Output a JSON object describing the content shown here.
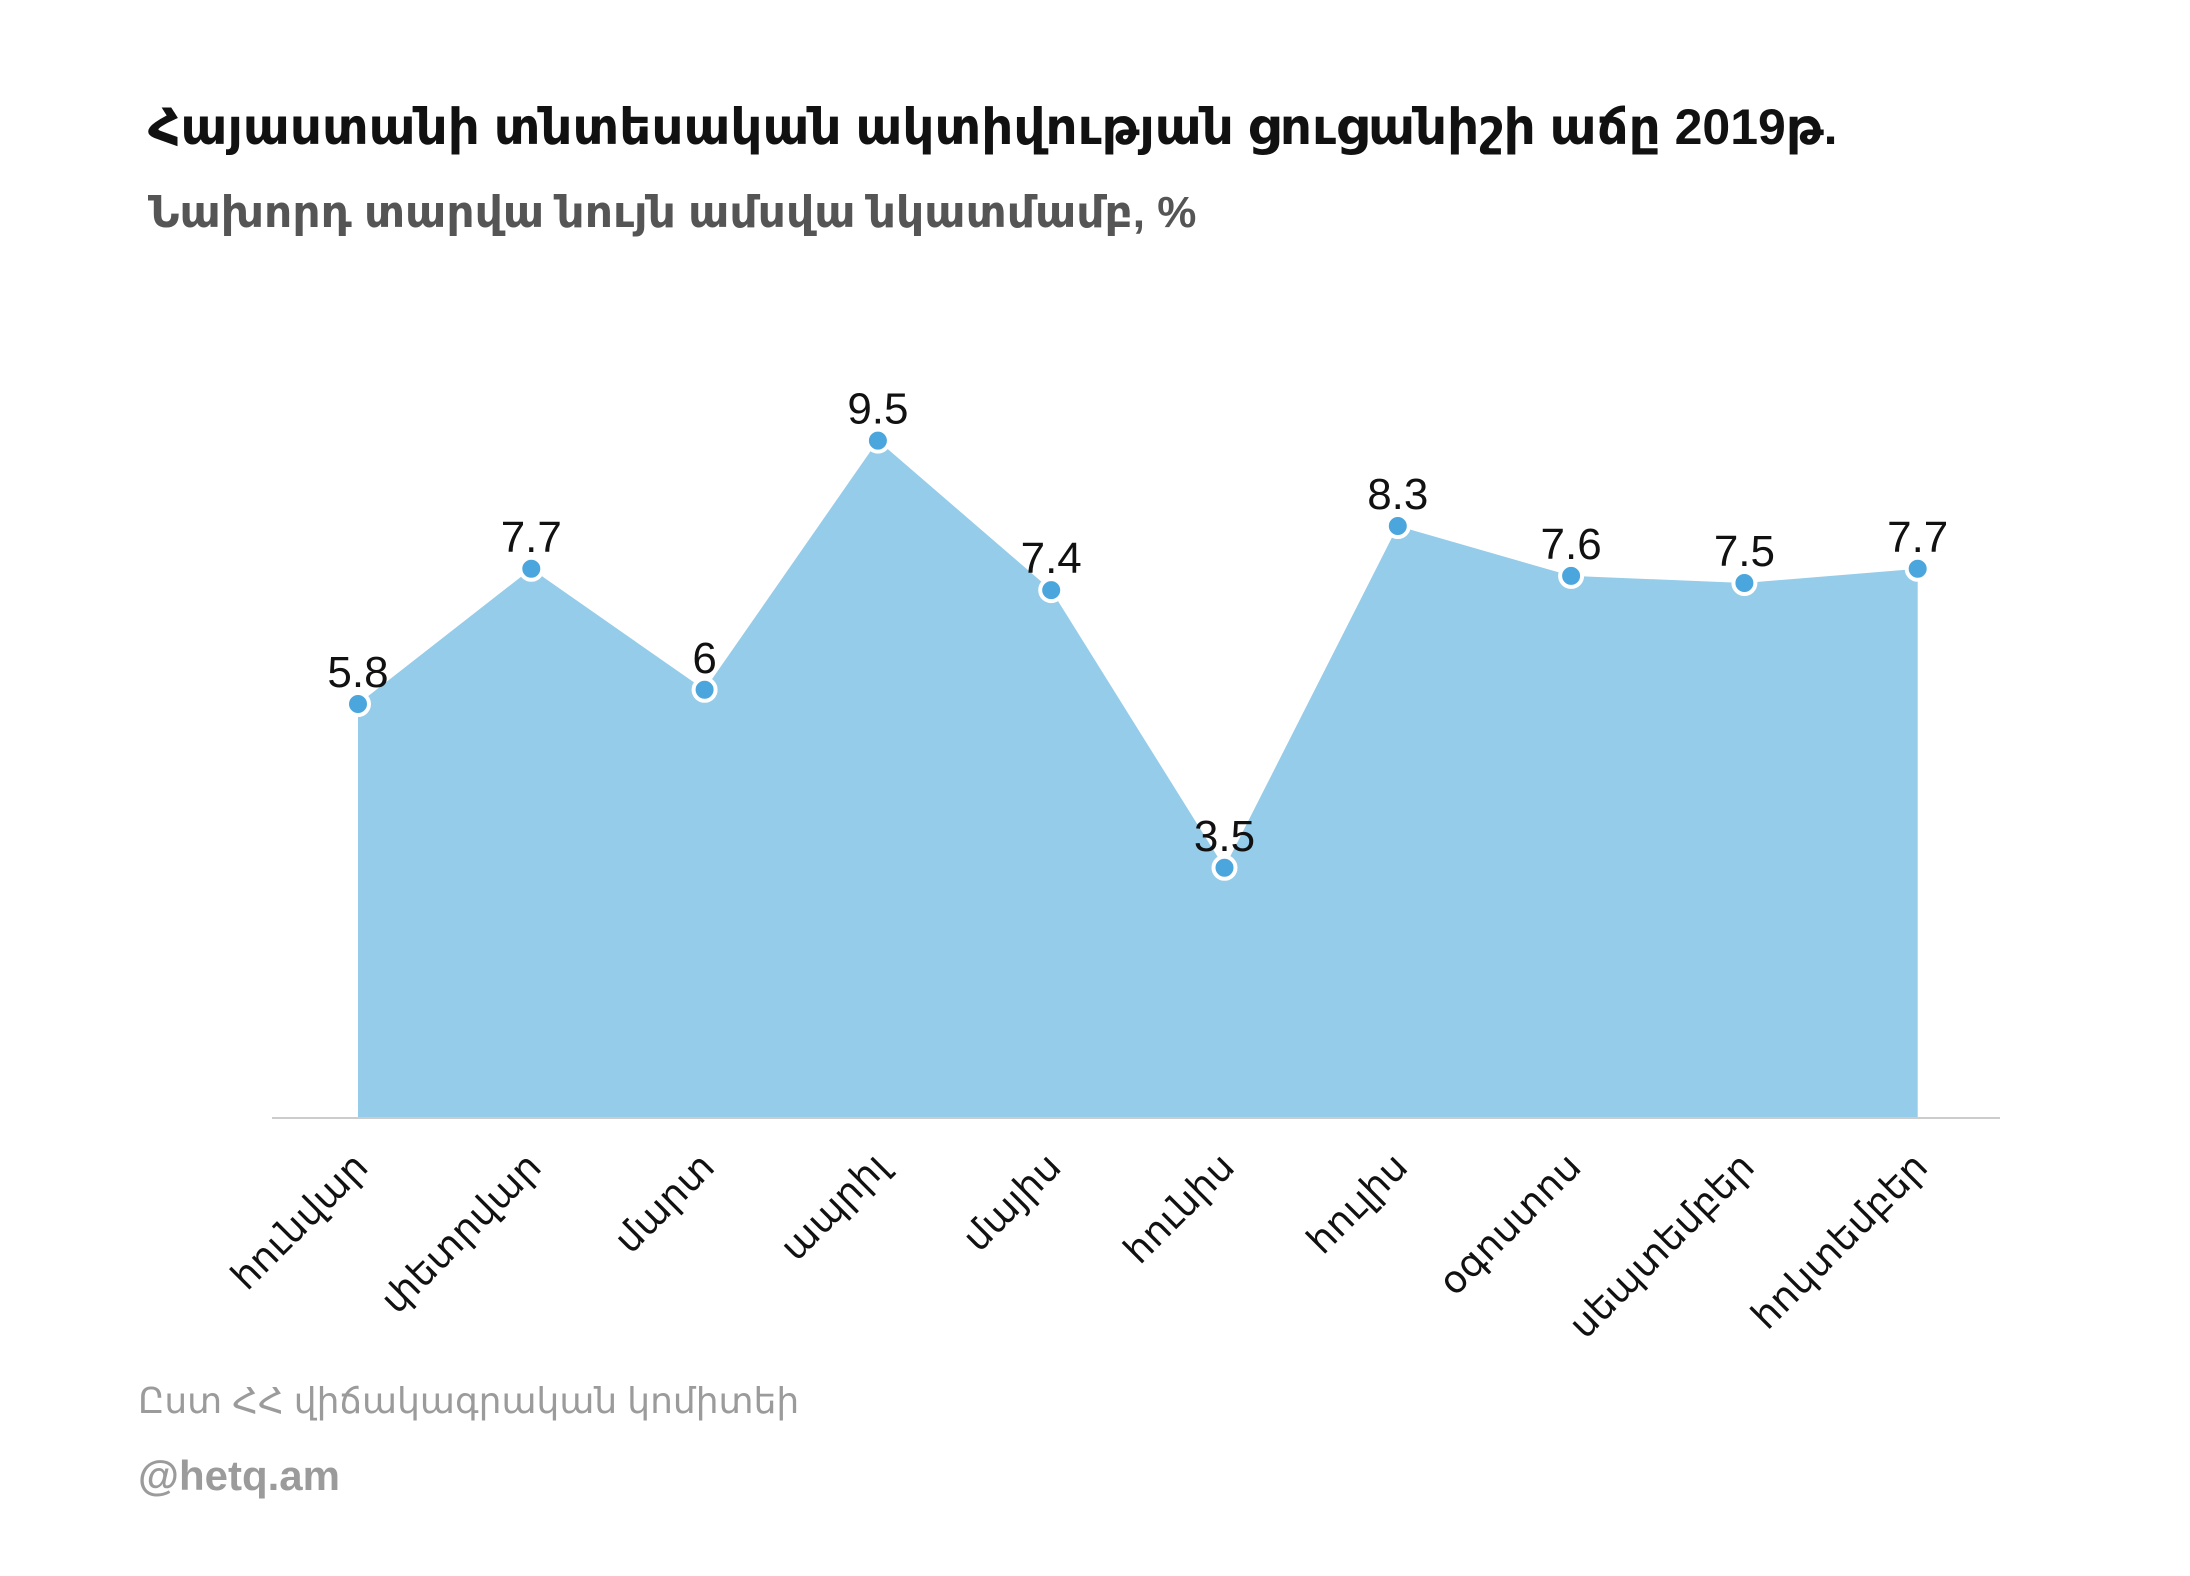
{
  "header": {
    "title": "Հայաստանի տնտեսական ակտիվության ցուցանիշի աճը 2019թ.",
    "subtitle": "Նախորդ տարվա նույն ամսվա նկատմամբ, %"
  },
  "footer": {
    "source": "Ըստ ՀՀ վիճակագրական կոմիտեի",
    "brand": "@hetq.am"
  },
  "colors": {
    "area_fill": "#95cce9",
    "marker": "#4aa6dc",
    "marker_stroke": "#ffffff",
    "axis": "#cccccc"
  },
  "chart_data": {
    "type": "area",
    "title": "Հայաստանի տնտեսական ակտիվության ցուցանիշի աճը 2019թ.",
    "subtitle": "Նախորդ տարվա նույն ամսվա նկատմամբ, %",
    "categories": [
      "հունվար",
      "փետրվար",
      "մարտ",
      "ապրիլ",
      "մայիս",
      "հունիս",
      "հուլիս",
      "օգոստոս",
      "սեպտեմբեր",
      "հոկտեմբեր"
    ],
    "values": [
      5.8,
      7.7,
      6,
      9.5,
      7.4,
      3.5,
      8.3,
      7.6,
      7.5,
      7.7
    ],
    "value_labels": [
      "5.8",
      "7.7",
      "6",
      "9.5",
      "7.4",
      "3.5",
      "8.3",
      "7.6",
      "7.5",
      "7.7"
    ],
    "ylim": [
      0,
      10
    ],
    "grid": false,
    "legend": "none",
    "xlabel": "",
    "ylabel": ""
  }
}
